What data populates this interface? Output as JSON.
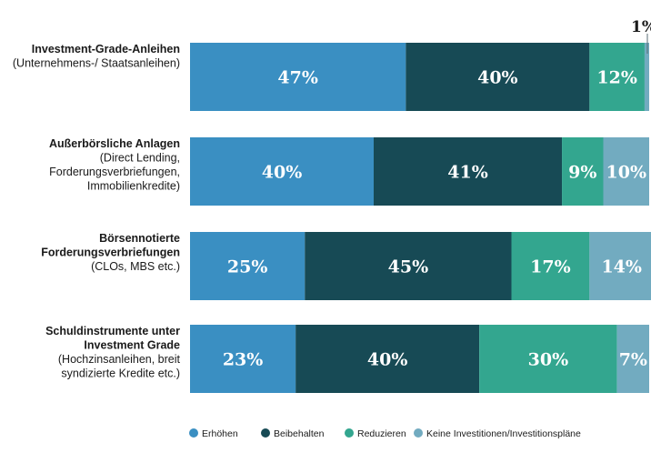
{
  "chart_data": {
    "type": "bar",
    "orientation": "horizontal",
    "stacked": true,
    "categories": [
      {
        "title": [
          "Investment-Grade-Anleihen"
        ],
        "subtitle": [
          "(Unternehmens-/ Staatsanleihen)"
        ]
      },
      {
        "title": [
          "Außerbörsliche Anlagen"
        ],
        "subtitle": [
          "(Direct Lending,",
          "Forderungsverbriefungen,",
          "Immobilienkredite)"
        ]
      },
      {
        "title": [
          "Börsennotierte",
          "Forderungsverbriefungen"
        ],
        "subtitle": [
          "(CLOs, MBS etc.)"
        ]
      },
      {
        "title": [
          "Schuldinstrumente unter",
          "Investment Grade"
        ],
        "subtitle": [
          "(Hochzinsanleihen, breit",
          "syndizierte Kredite etc.)"
        ]
      }
    ],
    "series": [
      {
        "name": "Erhöhen",
        "color": "#3a8fc2",
        "values": [
          47,
          40,
          25,
          23
        ],
        "labels": [
          "47%",
          "40%",
          "25%",
          "23%"
        ]
      },
      {
        "name": "Beibehalten",
        "color": "#174a55",
        "values": [
          40,
          41,
          45,
          40
        ],
        "labels": [
          "40%",
          "41%",
          "45%",
          "40%"
        ]
      },
      {
        "name": "Reduzieren",
        "color": "#33a68f",
        "values": [
          12,
          9,
          17,
          30
        ],
        "labels": [
          "12%",
          "9%",
          "17%",
          "30%"
        ]
      },
      {
        "name": "Keine Investitionen/Investitionspläne",
        "color": "#72abc0",
        "values": [
          1,
          10,
          14,
          7
        ],
        "labels": [
          "1%",
          "10%",
          "14%",
          "7%"
        ]
      }
    ],
    "xlim": [
      0,
      100
    ],
    "legend_position": "bottom",
    "grid": false
  }
}
